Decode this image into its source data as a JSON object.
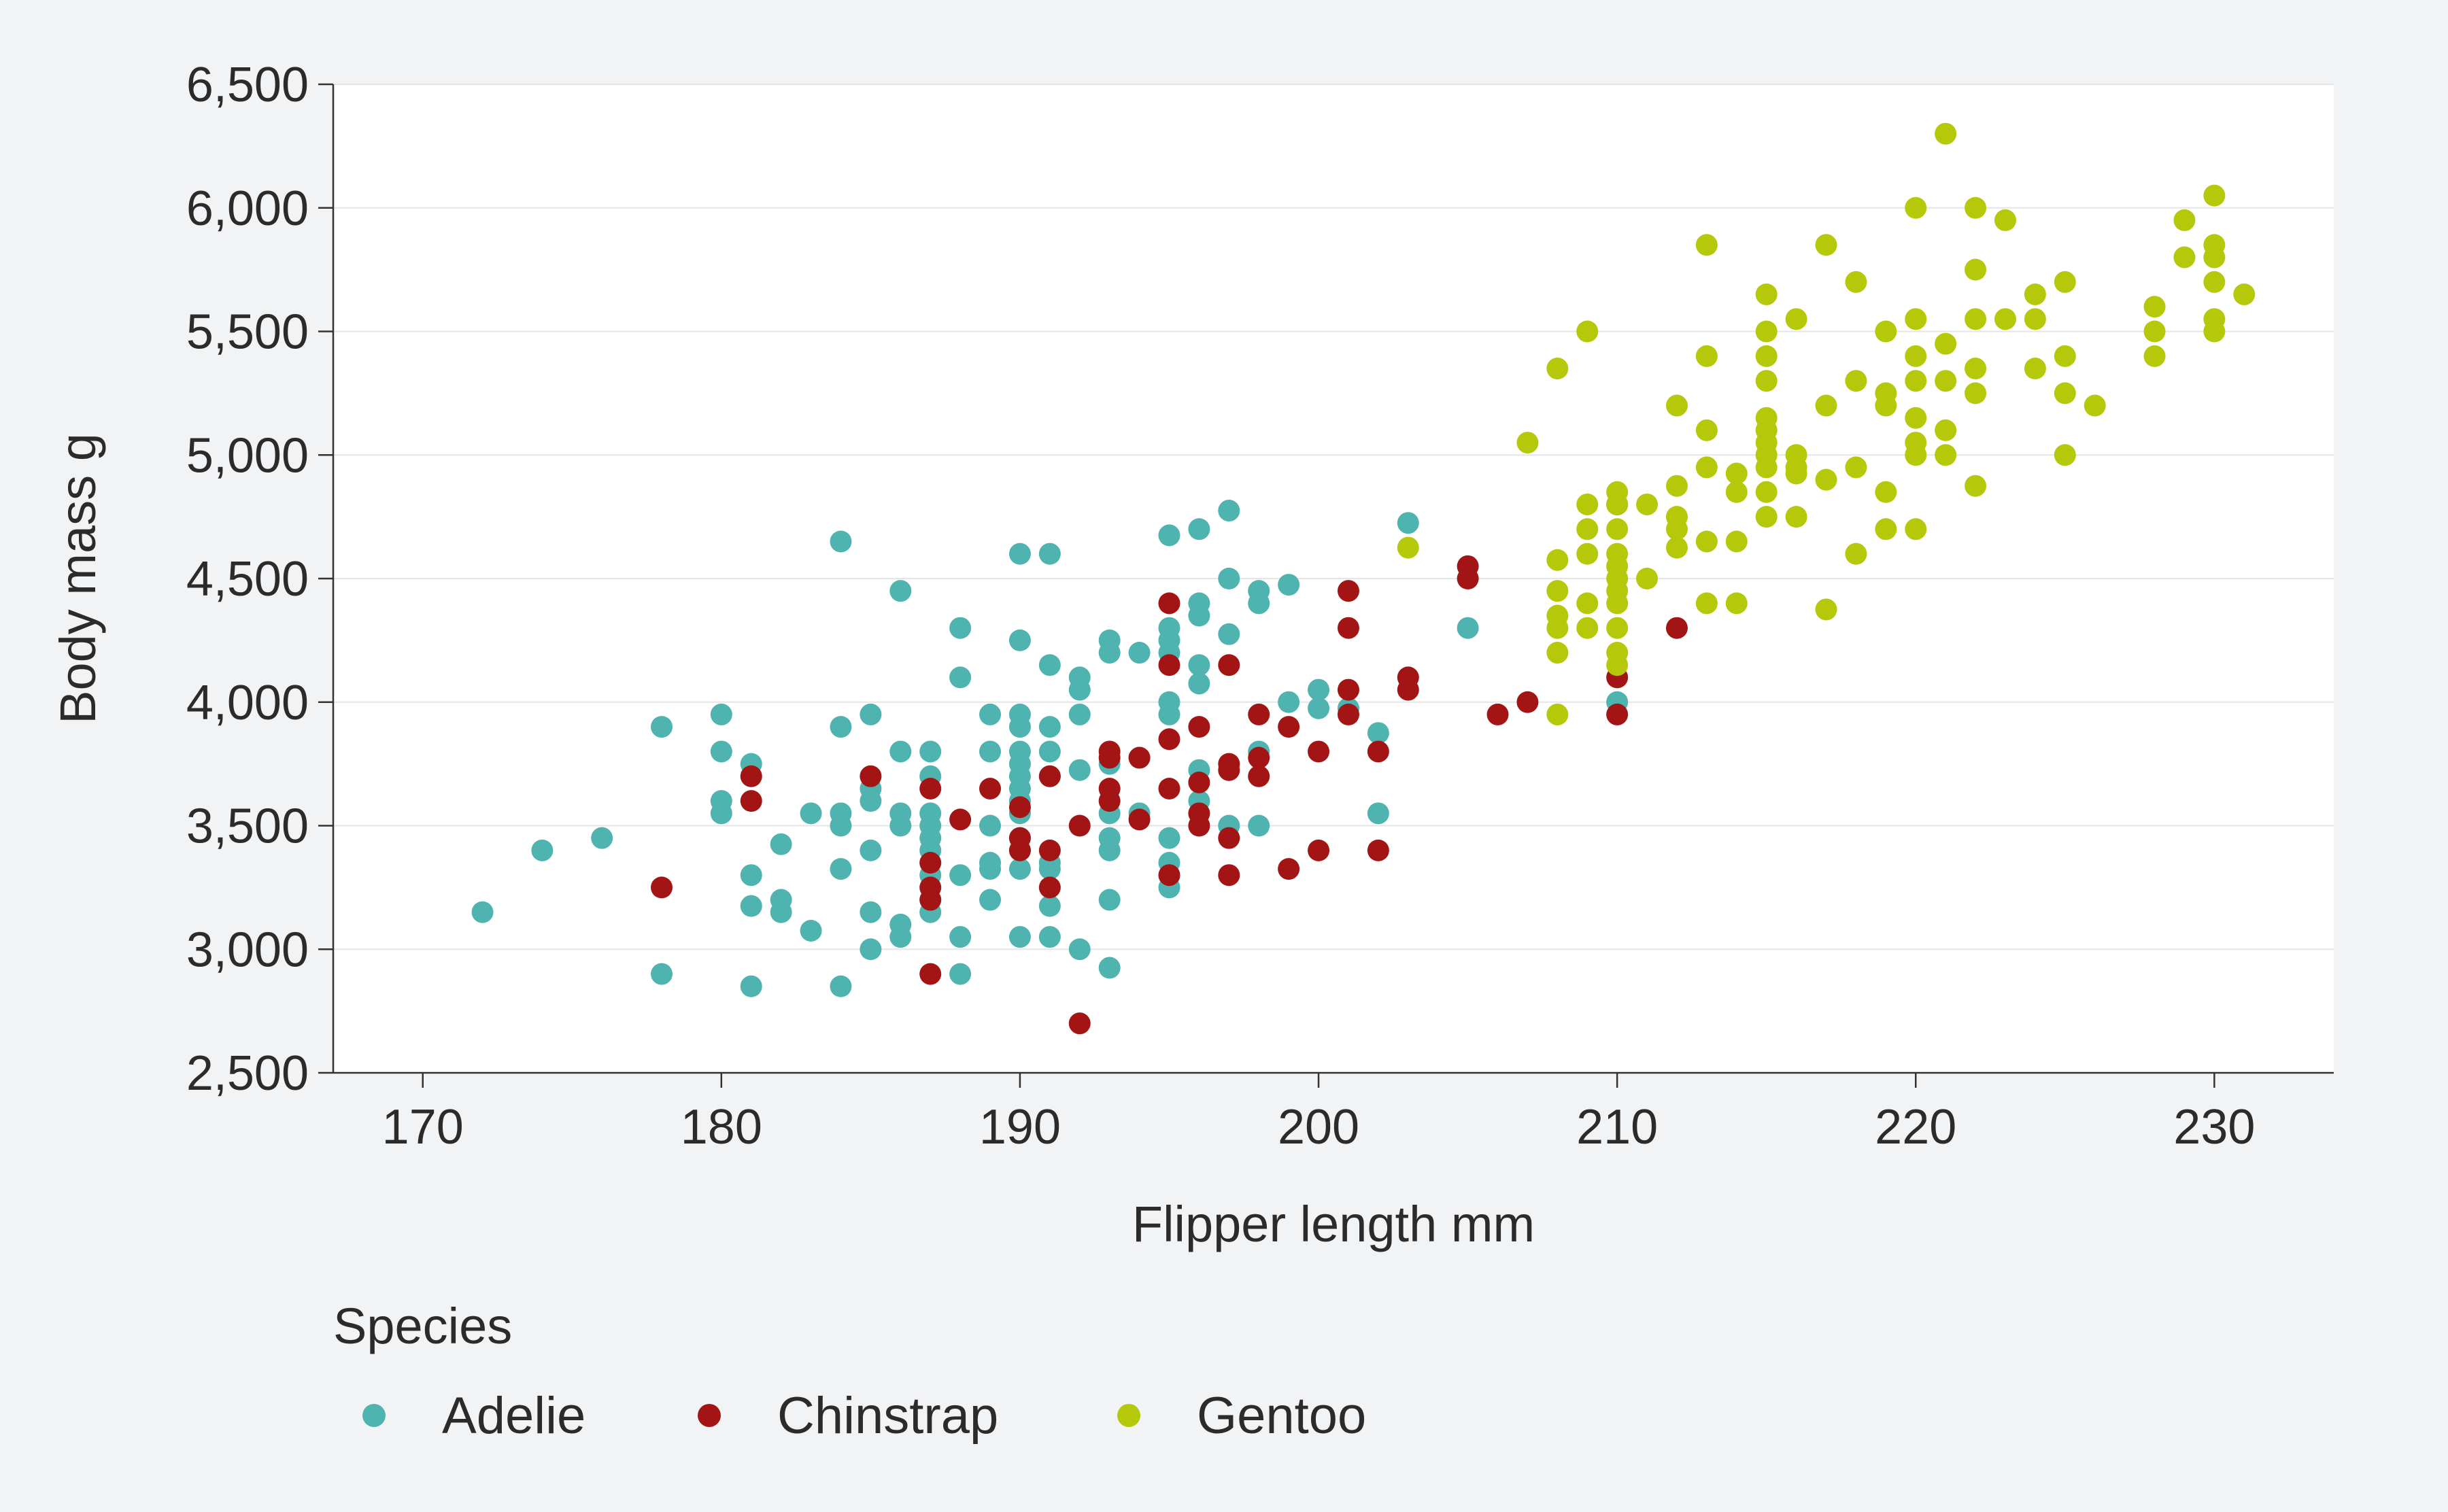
{
  "chart_data": {
    "type": "scatter",
    "title": "",
    "xlabel": "Flipper length mm",
    "ylabel": "Body mass g",
    "xlim": [
      167,
      234
    ],
    "ylim": [
      2500,
      6500
    ],
    "x_ticks": [
      170,
      180,
      190,
      200,
      210,
      220,
      230
    ],
    "y_ticks": [
      2500,
      3000,
      3500,
      4000,
      4500,
      5000,
      5500,
      6000,
      6500
    ],
    "x_tick_labels": [
      "170",
      "180",
      "190",
      "200",
      "210",
      "220",
      "230"
    ],
    "y_tick_labels": [
      "2,500",
      "3,000",
      "3,500",
      "4,000",
      "4,500",
      "5,000",
      "5,500",
      "6,000",
      "6,500"
    ],
    "grid": "horizontal",
    "legend": {
      "title": "Species",
      "position": "bottom"
    },
    "series": [
      {
        "name": "Adelie",
        "color": "#4fb3b0",
        "points": [
          [
            172,
            3150
          ],
          [
            174,
            3400
          ],
          [
            176,
            3450
          ],
          [
            178,
            3900
          ],
          [
            178,
            2900
          ],
          [
            180,
            3950
          ],
          [
            180,
            3800
          ],
          [
            180,
            3600
          ],
          [
            180,
            3550
          ],
          [
            181,
            3750
          ],
          [
            181,
            3300
          ],
          [
            181,
            3175
          ],
          [
            181,
            2850
          ],
          [
            182,
            3200
          ],
          [
            182,
            3150
          ],
          [
            182,
            3425
          ],
          [
            183,
            3550
          ],
          [
            183,
            3075
          ],
          [
            184,
            4650
          ],
          [
            184,
            3900
          ],
          [
            184,
            3550
          ],
          [
            184,
            3500
          ],
          [
            184,
            3325
          ],
          [
            184,
            2850
          ],
          [
            185,
            3950
          ],
          [
            185,
            3650
          ],
          [
            185,
            3600
          ],
          [
            185,
            3400
          ],
          [
            185,
            3150
          ],
          [
            185,
            3000
          ],
          [
            186,
            4450
          ],
          [
            186,
            3800
          ],
          [
            186,
            3550
          ],
          [
            186,
            3500
          ],
          [
            186,
            3100
          ],
          [
            186,
            3050
          ],
          [
            187,
            3800
          ],
          [
            187,
            3700
          ],
          [
            187,
            3550
          ],
          [
            187,
            3500
          ],
          [
            187,
            3450
          ],
          [
            187,
            3400
          ],
          [
            187,
            3300
          ],
          [
            187,
            3200
          ],
          [
            187,
            3150
          ],
          [
            188,
            4300
          ],
          [
            188,
            4100
          ],
          [
            188,
            3300
          ],
          [
            188,
            3050
          ],
          [
            188,
            2900
          ],
          [
            189,
            3950
          ],
          [
            189,
            3800
          ],
          [
            189,
            3500
          ],
          [
            189,
            3350
          ],
          [
            189,
            3325
          ],
          [
            189,
            3200
          ],
          [
            190,
            4600
          ],
          [
            190,
            4250
          ],
          [
            190,
            3950
          ],
          [
            190,
            3900
          ],
          [
            190,
            3800
          ],
          [
            190,
            3750
          ],
          [
            190,
            3700
          ],
          [
            190,
            3650
          ],
          [
            190,
            3600
          ],
          [
            190,
            3550
          ],
          [
            190,
            3450
          ],
          [
            190,
            3400
          ],
          [
            190,
            3325
          ],
          [
            190,
            3050
          ],
          [
            191,
            4600
          ],
          [
            191,
            4150
          ],
          [
            191,
            3900
          ],
          [
            191,
            3800
          ],
          [
            191,
            3700
          ],
          [
            191,
            3350
          ],
          [
            191,
            3325
          ],
          [
            191,
            3175
          ],
          [
            191,
            3050
          ],
          [
            192,
            4100
          ],
          [
            192,
            4050
          ],
          [
            192,
            3950
          ],
          [
            192,
            3725
          ],
          [
            192,
            3000
          ],
          [
            193,
            4250
          ],
          [
            193,
            4200
          ],
          [
            193,
            3750
          ],
          [
            193,
            3550
          ],
          [
            193,
            3450
          ],
          [
            193,
            3400
          ],
          [
            193,
            3200
          ],
          [
            193,
            2925
          ],
          [
            194,
            4200
          ],
          [
            194,
            3775
          ],
          [
            194,
            3550
          ],
          [
            195,
            4675
          ],
          [
            195,
            4300
          ],
          [
            195,
            4250
          ],
          [
            195,
            4200
          ],
          [
            195,
            4000
          ],
          [
            195,
            3950
          ],
          [
            195,
            3450
          ],
          [
            195,
            3350
          ],
          [
            195,
            3300
          ],
          [
            195,
            3250
          ],
          [
            196,
            4700
          ],
          [
            196,
            4400
          ],
          [
            196,
            4350
          ],
          [
            196,
            4150
          ],
          [
            196,
            4075
          ],
          [
            196,
            3725
          ],
          [
            196,
            3600
          ],
          [
            197,
            4775
          ],
          [
            197,
            4500
          ],
          [
            197,
            4275
          ],
          [
            197,
            3500
          ],
          [
            198,
            4450
          ],
          [
            198,
            4400
          ],
          [
            198,
            3800
          ],
          [
            198,
            3500
          ],
          [
            199,
            4475
          ],
          [
            199,
            4000
          ],
          [
            200,
            4050
          ],
          [
            200,
            3975
          ],
          [
            201,
            3975
          ],
          [
            202,
            3875
          ],
          [
            202,
            3550
          ],
          [
            203,
            4725
          ],
          [
            205,
            4300
          ],
          [
            210,
            4000
          ]
        ]
      },
      {
        "name": "Chinstrap",
        "color": "#a31515",
        "points": [
          [
            178,
            3250
          ],
          [
            181,
            3700
          ],
          [
            181,
            3600
          ],
          [
            185,
            3700
          ],
          [
            187,
            3650
          ],
          [
            187,
            3350
          ],
          [
            187,
            3250
          ],
          [
            187,
            3200
          ],
          [
            187,
            2900
          ],
          [
            188,
            3525
          ],
          [
            189,
            3650
          ],
          [
            190,
            3575
          ],
          [
            190,
            3450
          ],
          [
            190,
            3400
          ],
          [
            191,
            3700
          ],
          [
            191,
            3400
          ],
          [
            191,
            3250
          ],
          [
            192,
            3500
          ],
          [
            192,
            2700
          ],
          [
            193,
            3800
          ],
          [
            193,
            3775
          ],
          [
            193,
            3650
          ],
          [
            193,
            3600
          ],
          [
            194,
            3775
          ],
          [
            194,
            3525
          ],
          [
            195,
            4400
          ],
          [
            195,
            4150
          ],
          [
            195,
            3850
          ],
          [
            195,
            3650
          ],
          [
            195,
            3300
          ],
          [
            196,
            3900
          ],
          [
            196,
            3675
          ],
          [
            196,
            3550
          ],
          [
            196,
            3500
          ],
          [
            197,
            4150
          ],
          [
            197,
            3750
          ],
          [
            197,
            3725
          ],
          [
            197,
            3450
          ],
          [
            197,
            3300
          ],
          [
            198,
            3950
          ],
          [
            198,
            3775
          ],
          [
            198,
            3700
          ],
          [
            199,
            3900
          ],
          [
            199,
            3325
          ],
          [
            200,
            3800
          ],
          [
            200,
            3400
          ],
          [
            201,
            4450
          ],
          [
            201,
            4300
          ],
          [
            201,
            4050
          ],
          [
            201,
            3950
          ],
          [
            202,
            3800
          ],
          [
            202,
            3400
          ],
          [
            203,
            4100
          ],
          [
            203,
            4050
          ],
          [
            205,
            4550
          ],
          [
            205,
            4500
          ],
          [
            206,
            3950
          ],
          [
            207,
            4000
          ],
          [
            210,
            4800
          ],
          [
            210,
            4100
          ],
          [
            210,
            3950
          ],
          [
            212,
            4300
          ]
        ]
      },
      {
        "name": "Gentoo",
        "color": "#b5c80a",
        "points": [
          [
            203,
            4625
          ],
          [
            207,
            5050
          ],
          [
            208,
            5350
          ],
          [
            208,
            4575
          ],
          [
            208,
            4450
          ],
          [
            208,
            4350
          ],
          [
            208,
            4300
          ],
          [
            208,
            4200
          ],
          [
            208,
            3950
          ],
          [
            209,
            5500
          ],
          [
            209,
            4800
          ],
          [
            209,
            4700
          ],
          [
            209,
            4600
          ],
          [
            209,
            4400
          ],
          [
            209,
            4300
          ],
          [
            210,
            4850
          ],
          [
            210,
            4800
          ],
          [
            210,
            4700
          ],
          [
            210,
            4600
          ],
          [
            210,
            4550
          ],
          [
            210,
            4500
          ],
          [
            210,
            4450
          ],
          [
            210,
            4400
          ],
          [
            210,
            4300
          ],
          [
            210,
            4200
          ],
          [
            210,
            4150
          ],
          [
            211,
            4800
          ],
          [
            211,
            4500
          ],
          [
            212,
            5200
          ],
          [
            212,
            4875
          ],
          [
            212,
            4750
          ],
          [
            212,
            4700
          ],
          [
            212,
            4625
          ],
          [
            213,
            5850
          ],
          [
            213,
            5400
          ],
          [
            213,
            5100
          ],
          [
            213,
            4950
          ],
          [
            213,
            4650
          ],
          [
            213,
            4400
          ],
          [
            214,
            4925
          ],
          [
            214,
            4850
          ],
          [
            214,
            4650
          ],
          [
            214,
            4400
          ],
          [
            215,
            5650
          ],
          [
            215,
            5500
          ],
          [
            215,
            5400
          ],
          [
            215,
            5300
          ],
          [
            215,
            5150
          ],
          [
            215,
            5100
          ],
          [
            215,
            5050
          ],
          [
            215,
            5000
          ],
          [
            215,
            4950
          ],
          [
            215,
            4850
          ],
          [
            215,
            4750
          ],
          [
            216,
            5550
          ],
          [
            216,
            5000
          ],
          [
            216,
            4950
          ],
          [
            216,
            4925
          ],
          [
            216,
            4750
          ],
          [
            217,
            5850
          ],
          [
            217,
            5200
          ],
          [
            217,
            4900
          ],
          [
            217,
            4375
          ],
          [
            218,
            5700
          ],
          [
            218,
            5300
          ],
          [
            218,
            4950
          ],
          [
            218,
            4600
          ],
          [
            219,
            5500
          ],
          [
            219,
            5250
          ],
          [
            219,
            5200
          ],
          [
            219,
            4850
          ],
          [
            219,
            4700
          ],
          [
            220,
            6000
          ],
          [
            220,
            5550
          ],
          [
            220,
            5400
          ],
          [
            220,
            5300
          ],
          [
            220,
            5150
          ],
          [
            220,
            5050
          ],
          [
            220,
            5000
          ],
          [
            220,
            4700
          ],
          [
            221,
            6300
          ],
          [
            221,
            5450
          ],
          [
            221,
            5300
          ],
          [
            221,
            5100
          ],
          [
            221,
            5000
          ],
          [
            222,
            6000
          ],
          [
            222,
            5750
          ],
          [
            222,
            5550
          ],
          [
            222,
            5350
          ],
          [
            222,
            5250
          ],
          [
            222,
            4875
          ],
          [
            223,
            5950
          ],
          [
            223,
            5550
          ],
          [
            224,
            5650
          ],
          [
            224,
            5550
          ],
          [
            224,
            5350
          ],
          [
            225,
            5700
          ],
          [
            225,
            5400
          ],
          [
            225,
            5250
          ],
          [
            225,
            5000
          ],
          [
            226,
            5200
          ],
          [
            228,
            5600
          ],
          [
            228,
            5500
          ],
          [
            228,
            5400
          ],
          [
            229,
            5950
          ],
          [
            229,
            5800
          ],
          [
            230,
            6050
          ],
          [
            230,
            5850
          ],
          [
            230,
            5800
          ],
          [
            230,
            5700
          ],
          [
            230,
            5550
          ],
          [
            230,
            5500
          ],
          [
            231,
            5650
          ]
        ]
      }
    ]
  }
}
